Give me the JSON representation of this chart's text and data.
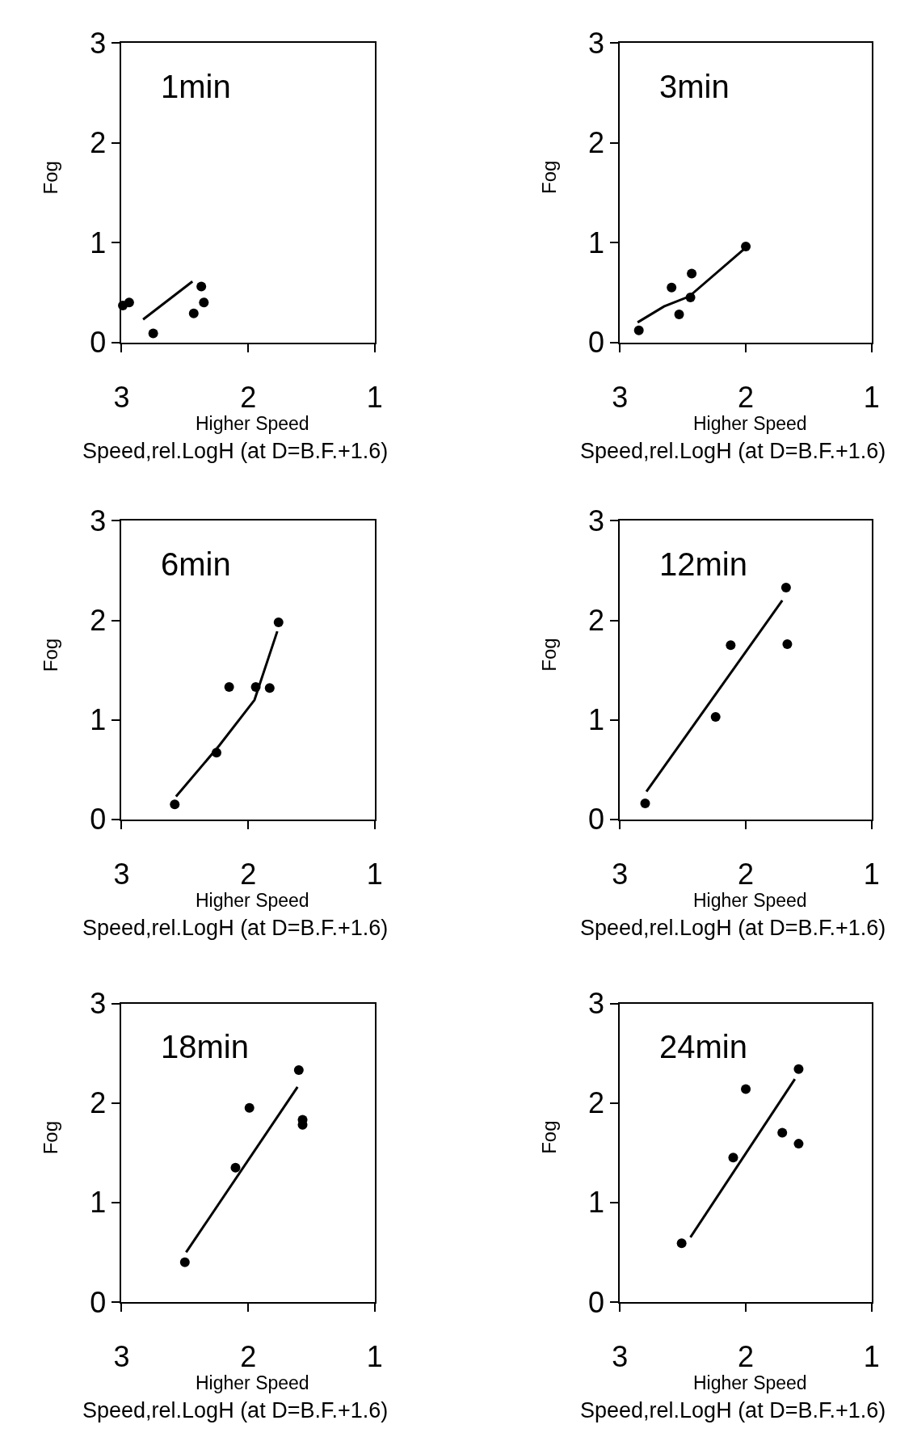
{
  "chart_data": [
    {
      "type": "scatter",
      "title": "1min",
      "xlabel": "Speed,rel.LogH (at D=B.F.+1.6)",
      "ylabel": "Fog",
      "annotations": [
        "Higher Speed"
      ],
      "xlim": [
        3,
        1
      ],
      "xticks": [
        3,
        2,
        1
      ],
      "ylim": [
        0,
        3
      ],
      "yticks": [
        0,
        1,
        2,
        3
      ],
      "series": [
        {
          "color": "#000000",
          "marker": "circle",
          "x": [
            2.99,
            2.94,
            2.75,
            2.43,
            2.37,
            2.35
          ],
          "values": [
            0.37,
            0.4,
            0.09,
            0.29,
            0.56,
            0.4
          ]
        },
        {
          "type": "line",
          "color": "#000000",
          "marker": "none",
          "x": [
            2.83,
            2.44
          ],
          "values": [
            0.23,
            0.61
          ]
        }
      ]
    },
    {
      "type": "scatter",
      "title": "3min",
      "xlabel": "Speed,rel.LogH (at D=B.F.+1.6)",
      "ylabel": "Fog",
      "annotations": [
        "Higher Speed"
      ],
      "xlim": [
        3,
        1
      ],
      "xticks": [
        3,
        2,
        1
      ],
      "ylim": [
        0,
        3
      ],
      "yticks": [
        0,
        1,
        2,
        3
      ],
      "series": [
        {
          "color": "#000000",
          "marker": "circle",
          "x": [
            2.85,
            2.59,
            2.53,
            2.44,
            2.43,
            2.0
          ],
          "values": [
            0.12,
            0.55,
            0.28,
            0.45,
            0.69,
            0.96
          ]
        },
        {
          "type": "line",
          "color": "#000000",
          "marker": "none",
          "x": [
            2.86,
            2.65,
            2.45,
            2.0
          ],
          "values": [
            0.2,
            0.36,
            0.46,
            0.95
          ]
        }
      ]
    },
    {
      "type": "scatter",
      "title": "6min",
      "xlabel": "Speed,rel.LogH (at D=B.F.+1.6)",
      "ylabel": "Fog",
      "annotations": [
        "Higher Speed"
      ],
      "xlim": [
        3,
        1
      ],
      "xticks": [
        3,
        2,
        1
      ],
      "ylim": [
        0,
        3
      ],
      "yticks": [
        0,
        1,
        2,
        3
      ],
      "series": [
        {
          "color": "#000000",
          "marker": "circle",
          "x": [
            2.58,
            2.25,
            2.15,
            1.94,
            1.83,
            1.76
          ],
          "values": [
            0.15,
            0.67,
            1.33,
            1.33,
            1.32,
            1.98
          ]
        },
        {
          "type": "line",
          "color": "#000000",
          "marker": "none",
          "x": [
            2.57,
            2.23,
            1.95,
            1.77
          ],
          "values": [
            0.23,
            0.74,
            1.2,
            1.89
          ]
        }
      ]
    },
    {
      "type": "scatter",
      "title": "12min",
      "xlabel": "Speed,rel.LogH (at D=B.F.+1.6)",
      "ylabel": "Fog",
      "annotations": [
        "Higher Speed"
      ],
      "xlim": [
        3,
        1
      ],
      "xticks": [
        3,
        2,
        1
      ],
      "ylim": [
        0,
        3
      ],
      "yticks": [
        0,
        1,
        2,
        3
      ],
      "series": [
        {
          "color": "#000000",
          "marker": "circle",
          "x": [
            2.8,
            2.24,
            2.12,
            1.68,
            1.67
          ],
          "values": [
            0.16,
            1.03,
            1.75,
            2.33,
            1.76
          ]
        },
        {
          "type": "line",
          "color": "#000000",
          "marker": "none",
          "x": [
            2.79,
            1.71
          ],
          "values": [
            0.28,
            2.2
          ]
        }
      ]
    },
    {
      "type": "scatter",
      "title": "18min",
      "xlabel": "Speed,rel.LogH (at D=B.F.+1.6)",
      "ylabel": "Fog",
      "annotations": [
        "Higher Speed"
      ],
      "xlim": [
        3,
        1
      ],
      "xticks": [
        3,
        2,
        1
      ],
      "ylim": [
        0,
        3
      ],
      "yticks": [
        0,
        1,
        2,
        3
      ],
      "series": [
        {
          "color": "#000000",
          "marker": "circle",
          "x": [
            2.5,
            2.1,
            1.99,
            1.6,
            1.57,
            1.57
          ],
          "values": [
            0.4,
            1.35,
            1.95,
            2.33,
            1.83,
            1.78
          ]
        },
        {
          "type": "line",
          "color": "#000000",
          "marker": "none",
          "x": [
            2.49,
            1.61
          ],
          "values": [
            0.5,
            2.16
          ]
        }
      ]
    },
    {
      "type": "scatter",
      "title": "24min",
      "xlabel": "Speed,rel.LogH (at D=B.F.+1.6)",
      "ylabel": "Fog",
      "annotations": [
        "Higher Speed"
      ],
      "xlim": [
        3,
        1
      ],
      "xticks": [
        3,
        2,
        1
      ],
      "ylim": [
        0,
        3
      ],
      "yticks": [
        0,
        1,
        2,
        3
      ],
      "series": [
        {
          "color": "#000000",
          "marker": "circle",
          "x": [
            2.51,
            2.1,
            2.0,
            1.71,
            1.58,
            1.58
          ],
          "values": [
            0.59,
            1.45,
            2.14,
            1.7,
            1.59,
            2.34
          ]
        },
        {
          "type": "line",
          "color": "#000000",
          "marker": "none",
          "x": [
            2.44,
            1.61
          ],
          "values": [
            0.65,
            2.24
          ]
        }
      ]
    }
  ]
}
